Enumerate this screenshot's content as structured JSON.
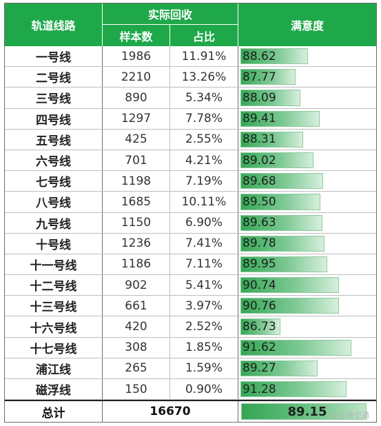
{
  "headers": {
    "route": "轨道线路",
    "group": "实际回收",
    "count": "样本数",
    "share": "占比",
    "satisfaction": "满意度"
  },
  "rows": [
    {
      "route": "一号线",
      "count": "1986",
      "share": "11.91%",
      "score": "88.62"
    },
    {
      "route": "二号线",
      "count": "2210",
      "share": "13.26%",
      "score": "87.77"
    },
    {
      "route": "三号线",
      "count": "890",
      "share": "5.34%",
      "score": "88.09"
    },
    {
      "route": "四号线",
      "count": "1297",
      "share": "7.78%",
      "score": "89.41"
    },
    {
      "route": "五号线",
      "count": "425",
      "share": "2.55%",
      "score": "88.31"
    },
    {
      "route": "六号线",
      "count": "701",
      "share": "4.21%",
      "score": "89.02"
    },
    {
      "route": "七号线",
      "count": "1198",
      "share": "7.19%",
      "score": "89.68"
    },
    {
      "route": "八号线",
      "count": "1685",
      "share": "10.11%",
      "score": "89.50"
    },
    {
      "route": "九号线",
      "count": "1150",
      "share": "6.90%",
      "score": "89.63"
    },
    {
      "route": "十号线",
      "count": "1236",
      "share": "7.41%",
      "score": "89.78"
    },
    {
      "route": "十一号线",
      "count": "1186",
      "share": "7.11%",
      "score": "89.95"
    },
    {
      "route": "十二号线",
      "count": "902",
      "share": "5.41%",
      "score": "90.74"
    },
    {
      "route": "十三号线",
      "count": "661",
      "share": "3.97%",
      "score": "90.76"
    },
    {
      "route": "十六号线",
      "count": "420",
      "share": "2.52%",
      "score": "86.73"
    },
    {
      "route": "十七号线",
      "count": "308",
      "share": "1.85%",
      "score": "91.62"
    },
    {
      "route": "浦江线",
      "count": "265",
      "share": "1.59%",
      "score": "89.27"
    },
    {
      "route": "磁浮线",
      "count": "150",
      "share": "0.90%",
      "score": "91.28"
    }
  ],
  "total": {
    "label": "总计",
    "count": "16670",
    "score": "89.15"
  },
  "watermark": "@上海交通",
  "colors": {
    "header_bg": "#1fa84a",
    "bar": "#35a855"
  }
}
